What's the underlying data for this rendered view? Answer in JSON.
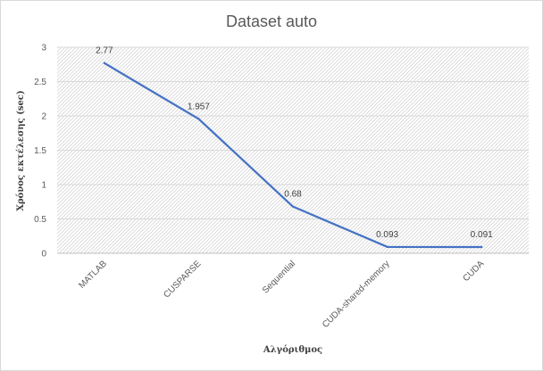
{
  "chart_data": {
    "type": "line",
    "title": "Dataset auto",
    "xlabel": "Αλγόριθμος",
    "ylabel": "Χρόνος εκτέλεσης (sec)",
    "categories": [
      "MATLAB",
      "CUSPARSE",
      "Sequential",
      "CUDA-shared-memory",
      "CUDA"
    ],
    "series": [
      {
        "values": [
          2.77,
          1.957,
          0.68,
          0.093,
          0.091
        ],
        "color": "#4472c4"
      }
    ],
    "data_labels": [
      "2.77",
      "1.957",
      "0.68",
      "0.093",
      "0.091"
    ],
    "ylim": [
      0,
      3
    ],
    "yticks": [
      "0",
      "0.5",
      "1",
      "1.5",
      "2",
      "2.5",
      "3"
    ],
    "grid": true,
    "plot_background": "hatched",
    "legend": "none"
  }
}
